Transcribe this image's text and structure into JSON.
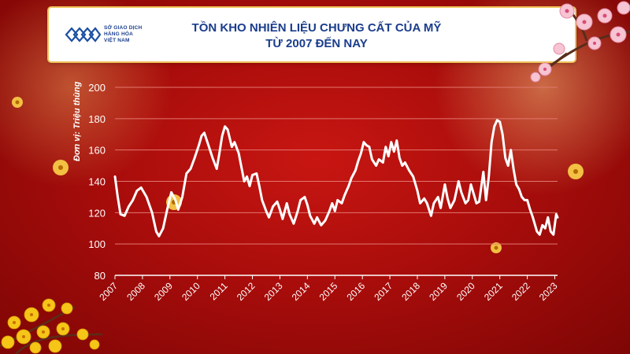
{
  "header": {
    "logo_lines": [
      "SỞ GIAO DỊCH",
      "HÀNG HÓA",
      "VIỆT NAM"
    ],
    "title_line1": "TỒN KHO NHIÊN LIỆU CHƯNG CẤT CỦA MỸ",
    "title_line2": "TỪ 2007 ĐẾN NAY"
  },
  "colors": {
    "background": "#b01210",
    "line": "#ffffff",
    "title": "#1a3d8c",
    "grid": "#e2776f"
  },
  "chart_data": {
    "type": "line",
    "title": "TỒN KHO NHIÊN LIỆU CHƯNG CẤT CỦA MỸ TỪ 2007 ĐẾN NAY",
    "ylabel": "Đơn vị: Triệu thùng",
    "xlabel": "",
    "ylim": [
      80,
      200
    ],
    "yticks": [
      80,
      100,
      120,
      140,
      160,
      180,
      200
    ],
    "xlim": [
      2007,
      2023.1
    ],
    "xticks": [
      "2007",
      "2008",
      "2009",
      "2010",
      "2011",
      "2012",
      "2013",
      "2014",
      "2015",
      "2016",
      "2017",
      "2018",
      "2019",
      "2020",
      "2021",
      "2022",
      "2023"
    ],
    "grid": "horizontal",
    "legend": "none",
    "series": [
      {
        "values": [
          [
            2007.0,
            143
          ],
          [
            2007.1,
            130
          ],
          [
            2007.2,
            119
          ],
          [
            2007.35,
            118
          ],
          [
            2007.5,
            124
          ],
          [
            2007.65,
            128
          ],
          [
            2007.8,
            134
          ],
          [
            2007.95,
            136
          ],
          [
            2008.15,
            130
          ],
          [
            2008.35,
            120
          ],
          [
            2008.5,
            108
          ],
          [
            2008.6,
            105
          ],
          [
            2008.75,
            110
          ],
          [
            2008.9,
            122
          ],
          [
            2009.05,
            133
          ],
          [
            2009.2,
            128
          ],
          [
            2009.3,
            122
          ],
          [
            2009.45,
            130
          ],
          [
            2009.6,
            145
          ],
          [
            2009.75,
            148
          ],
          [
            2009.9,
            155
          ],
          [
            2010.05,
            163
          ],
          [
            2010.15,
            169
          ],
          [
            2010.25,
            171
          ],
          [
            2010.4,
            163
          ],
          [
            2010.55,
            155
          ],
          [
            2010.7,
            148
          ],
          [
            2010.8,
            158
          ],
          [
            2010.9,
            169
          ],
          [
            2011.0,
            175
          ],
          [
            2011.1,
            173
          ],
          [
            2011.25,
            162
          ],
          [
            2011.35,
            165
          ],
          [
            2011.5,
            158
          ],
          [
            2011.6,
            149
          ],
          [
            2011.7,
            140
          ],
          [
            2011.8,
            143
          ],
          [
            2011.9,
            137
          ],
          [
            2012.0,
            144
          ],
          [
            2012.15,
            145
          ],
          [
            2012.25,
            137
          ],
          [
            2012.35,
            128
          ],
          [
            2012.5,
            121
          ],
          [
            2012.6,
            117
          ],
          [
            2012.75,
            124
          ],
          [
            2012.9,
            127
          ],
          [
            2013.0,
            122
          ],
          [
            2013.1,
            116
          ],
          [
            2013.25,
            126
          ],
          [
            2013.35,
            119
          ],
          [
            2013.5,
            113
          ],
          [
            2013.65,
            121
          ],
          [
            2013.75,
            128
          ],
          [
            2013.9,
            130
          ],
          [
            2014.0,
            125
          ],
          [
            2014.1,
            118
          ],
          [
            2014.25,
            113
          ],
          [
            2014.35,
            117
          ],
          [
            2014.5,
            112
          ],
          [
            2014.65,
            115
          ],
          [
            2014.8,
            121
          ],
          [
            2014.9,
            126
          ],
          [
            2015.0,
            121
          ],
          [
            2015.1,
            128
          ],
          [
            2015.25,
            126
          ],
          [
            2015.35,
            131
          ],
          [
            2015.5,
            137
          ],
          [
            2015.6,
            142
          ],
          [
            2015.75,
            147
          ],
          [
            2015.85,
            153
          ],
          [
            2015.95,
            158
          ],
          [
            2016.05,
            165
          ],
          [
            2016.15,
            163
          ],
          [
            2016.25,
            162
          ],
          [
            2016.35,
            154
          ],
          [
            2016.5,
            150
          ],
          [
            2016.6,
            154
          ],
          [
            2016.75,
            152
          ],
          [
            2016.85,
            162
          ],
          [
            2016.95,
            156
          ],
          [
            2017.05,
            165
          ],
          [
            2017.15,
            159
          ],
          [
            2017.25,
            166
          ],
          [
            2017.35,
            155
          ],
          [
            2017.45,
            150
          ],
          [
            2017.55,
            152
          ],
          [
            2017.7,
            147
          ],
          [
            2017.85,
            143
          ],
          [
            2018.0,
            134
          ],
          [
            2018.1,
            126
          ],
          [
            2018.25,
            129
          ],
          [
            2018.35,
            126
          ],
          [
            2018.5,
            118
          ],
          [
            2018.6,
            126
          ],
          [
            2018.75,
            130
          ],
          [
            2018.85,
            123
          ],
          [
            2019.0,
            138
          ],
          [
            2019.1,
            129
          ],
          [
            2019.2,
            123
          ],
          [
            2019.35,
            128
          ],
          [
            2019.5,
            140
          ],
          [
            2019.6,
            133
          ],
          [
            2019.75,
            126
          ],
          [
            2019.85,
            128
          ],
          [
            2019.95,
            138
          ],
          [
            2020.05,
            132
          ],
          [
            2020.15,
            126
          ],
          [
            2020.25,
            127
          ],
          [
            2020.4,
            146
          ],
          [
            2020.5,
            128
          ],
          [
            2020.6,
            143
          ],
          [
            2020.7,
            165
          ],
          [
            2020.8,
            175
          ],
          [
            2020.9,
            179
          ],
          [
            2021.0,
            178
          ],
          [
            2021.1,
            170
          ],
          [
            2021.2,
            155
          ],
          [
            2021.3,
            150
          ],
          [
            2021.4,
            160
          ],
          [
            2021.5,
            148
          ],
          [
            2021.6,
            138
          ],
          [
            2021.7,
            135
          ],
          [
            2021.8,
            130
          ],
          [
            2021.9,
            128
          ],
          [
            2022.0,
            128
          ],
          [
            2022.1,
            122
          ],
          [
            2022.2,
            117
          ],
          [
            2022.35,
            108
          ],
          [
            2022.45,
            106
          ],
          [
            2022.55,
            112
          ],
          [
            2022.65,
            110
          ],
          [
            2022.75,
            117
          ],
          [
            2022.85,
            108
          ],
          [
            2022.95,
            106
          ],
          [
            2023.05,
            119
          ],
          [
            2023.1,
            117
          ]
        ]
      }
    ]
  }
}
